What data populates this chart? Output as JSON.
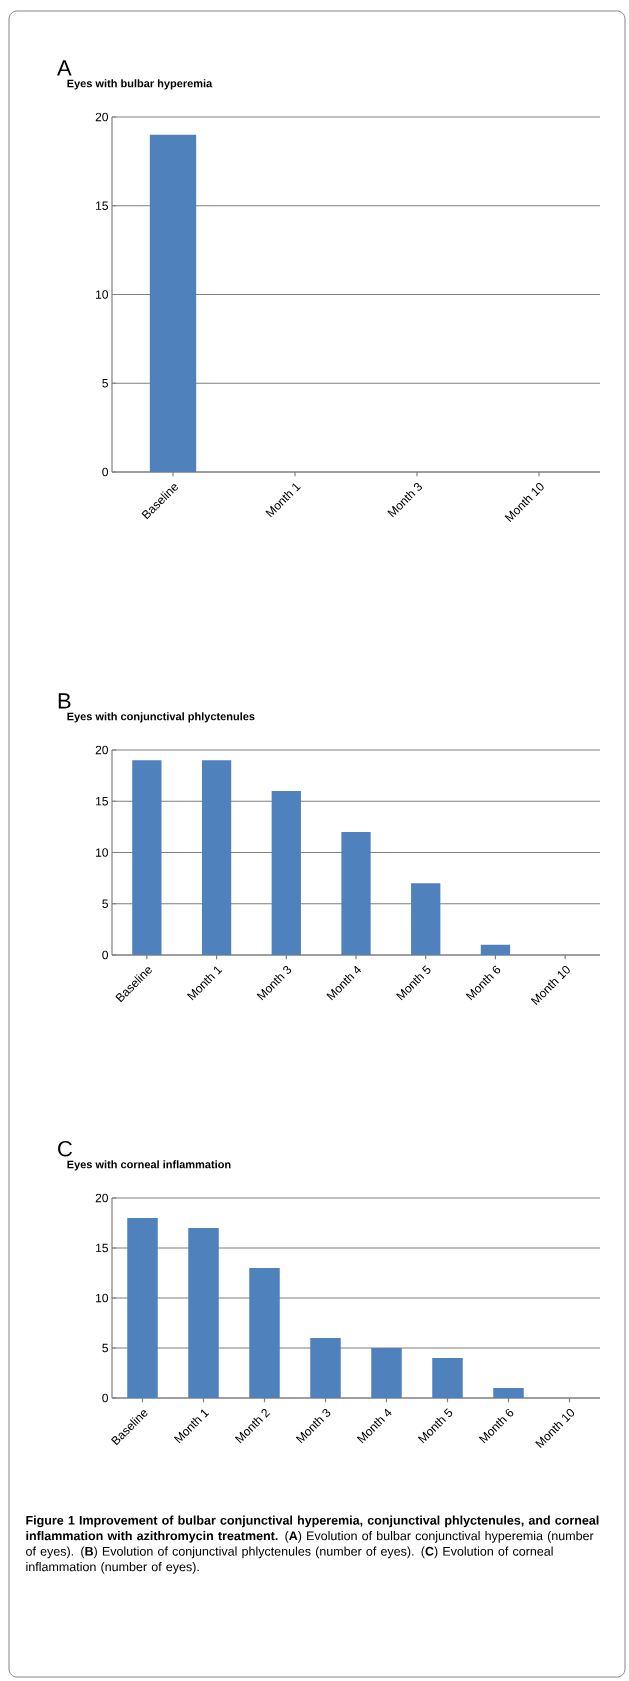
{
  "chart_data": [
    {
      "type": "bar",
      "title": "Eyes with bulbar hyperemia",
      "annotations": [
        "A"
      ],
      "categories": [
        "Baseline",
        "Month 1",
        "Month 3",
        "Month 10"
      ],
      "values": [
        19,
        0,
        0,
        0
      ],
      "color": "#4f81bd",
      "ylim": [
        0,
        20
      ],
      "yticks": [
        0,
        5,
        10,
        15,
        20
      ],
      "grid": "y"
    },
    {
      "type": "bar",
      "title": "Eyes with conjunctival phlyctenules",
      "annotations": [
        "B"
      ],
      "categories": [
        "Baseline",
        "Month 1",
        "Month 3",
        "Month 4",
        "Month 5",
        "Month 6",
        "Month 10"
      ],
      "values": [
        19,
        19,
        16,
        12,
        7,
        1,
        0
      ],
      "color": "#4f81bd",
      "ylim": [
        0,
        20
      ],
      "yticks": [
        0,
        5,
        10,
        15,
        20
      ],
      "grid": "y"
    },
    {
      "type": "bar",
      "title": "Eyes with corneal inflammation",
      "annotations": [
        "C",
        "**Figure 1 Improvement of bulbar conjunctival hyperemia, conjunctival phlyctenules, and corneal inflammation with azithromycin treatment.** (**A**) Evolution of bulbar conjunctival hyperemia (number of eyes). (**B**) Evolution of conjunctival phlyctenules (number of eyes). (**C**) Evolution of corneal inflammation (number of eyes)."
      ],
      "categories": [
        "Baseline",
        "Month 1",
        "Month 2",
        "Month 3",
        "Month 4",
        "Month 5",
        "Month 6",
        "Month 10"
      ],
      "values": [
        18,
        17,
        13,
        6,
        5,
        4,
        1,
        0
      ],
      "color": "#4f81bd",
      "ylim": [
        0,
        20
      ],
      "yticks": [
        0,
        5,
        10,
        15,
        20
      ],
      "grid": "y"
    }
  ]
}
